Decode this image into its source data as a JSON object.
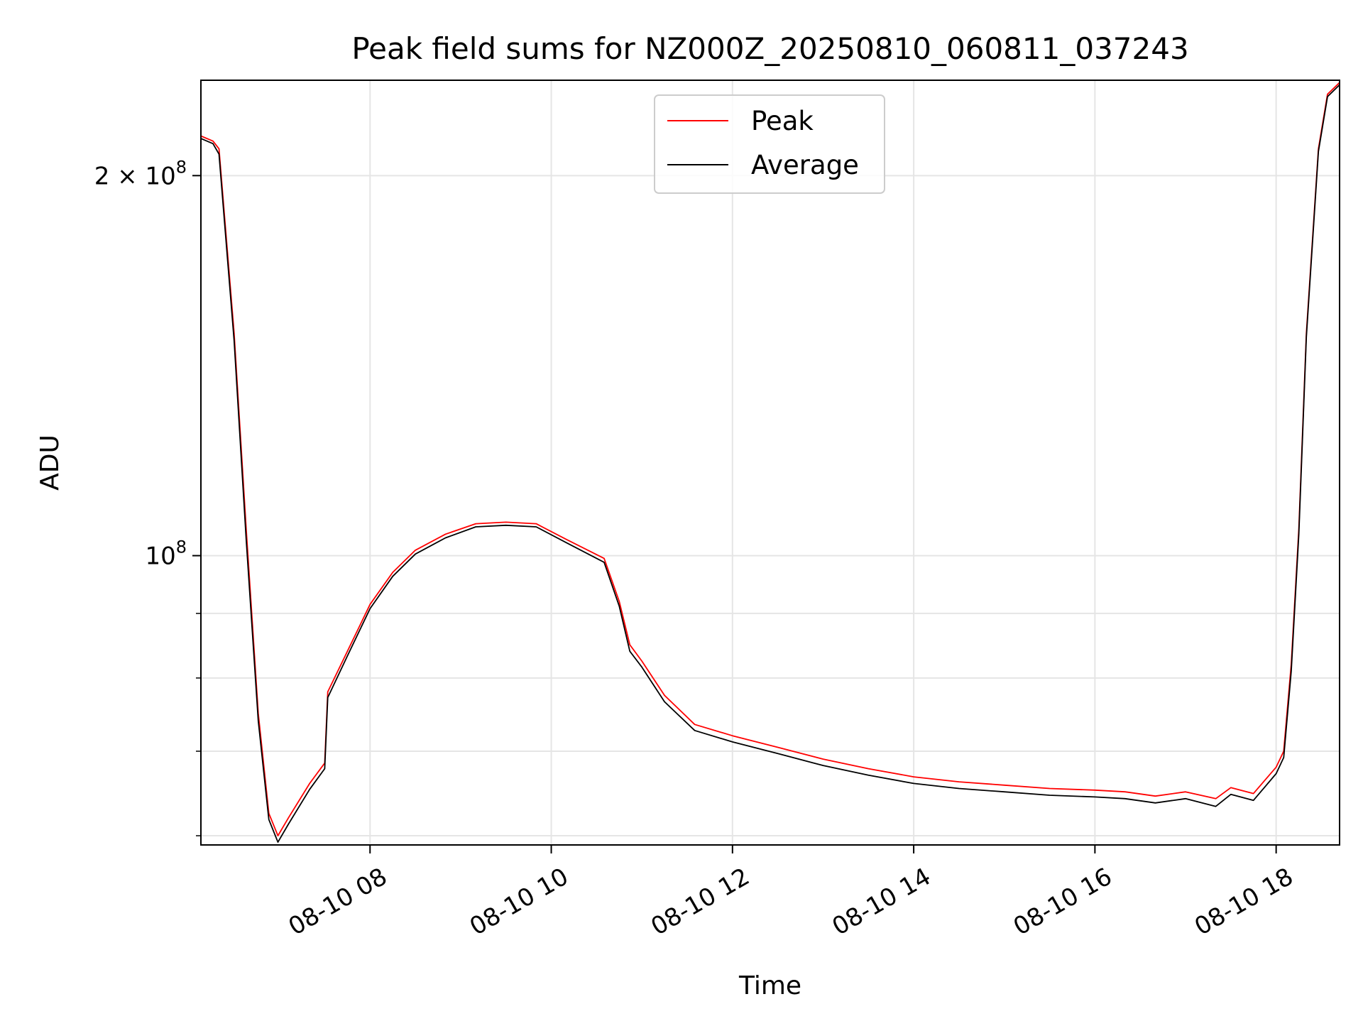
{
  "chart_data": {
    "type": "line",
    "title": "Peak field sums for NZ000Z_20250810_060811_037243",
    "xlabel": "Time",
    "ylabel": "ADU",
    "x_axis": {
      "kind": "datetime",
      "range": [
        "2025-08-10 06:08",
        "2025-08-10 18:42"
      ],
      "ticks": [
        {
          "value": "2025-08-10 08:00",
          "label": "08-10 08"
        },
        {
          "value": "2025-08-10 10:00",
          "label": "08-10 10"
        },
        {
          "value": "2025-08-10 12:00",
          "label": "08-10 12"
        },
        {
          "value": "2025-08-10 14:00",
          "label": "08-10 14"
        },
        {
          "value": "2025-08-10 16:00",
          "label": "08-10 16"
        },
        {
          "value": "2025-08-10 18:00",
          "label": "08-10 18"
        }
      ]
    },
    "y_axis": {
      "scale": "log",
      "range": [
        59000000,
        238000000
      ],
      "major_ticks": [
        {
          "value": 100000000,
          "label_base": "10",
          "label_exp": "8",
          "label_coef": ""
        },
        {
          "value": 200000000,
          "label_base": "10",
          "label_exp": "8",
          "label_coef": "2 × "
        }
      ],
      "minor_ticks": [
        60000000,
        70000000,
        80000000,
        90000000
      ]
    },
    "grid": true,
    "legend": {
      "position": "upper center",
      "entries": [
        {
          "name": "Peak",
          "color": "#ff0000"
        },
        {
          "name": "Average",
          "color": "#000000"
        }
      ]
    },
    "series": [
      {
        "name": "Peak",
        "color": "#ff0000",
        "points": [
          [
            "2025-08-10 06:08",
            215000000
          ],
          [
            "2025-08-10 06:16",
            213000000
          ],
          [
            "2025-08-10 06:20",
            210000000
          ],
          [
            "2025-08-10 06:30",
            150000000
          ],
          [
            "2025-08-10 06:38",
            105000000
          ],
          [
            "2025-08-10 06:46",
            75000000
          ],
          [
            "2025-08-10 06:53",
            62500000
          ],
          [
            "2025-08-10 06:59",
            60000000
          ],
          [
            "2025-08-10 07:06",
            62000000
          ],
          [
            "2025-08-10 07:20",
            66000000
          ],
          [
            "2025-08-10 07:30",
            68500000
          ],
          [
            "2025-08-10 07:32",
            78000000
          ],
          [
            "2025-08-10 07:45",
            84000000
          ],
          [
            "2025-08-10 08:00",
            91500000
          ],
          [
            "2025-08-10 08:15",
            97000000
          ],
          [
            "2025-08-10 08:30",
            101000000
          ],
          [
            "2025-08-10 08:50",
            104000000
          ],
          [
            "2025-08-10 09:10",
            106000000
          ],
          [
            "2025-08-10 09:30",
            106300000
          ],
          [
            "2025-08-10 09:50",
            106000000
          ],
          [
            "2025-08-10 10:10",
            103000000
          ],
          [
            "2025-08-10 10:35",
            99500000
          ],
          [
            "2025-08-10 10:45",
            92000000
          ],
          [
            "2025-08-10 10:52",
            85000000
          ],
          [
            "2025-08-10 11:00",
            82500000
          ],
          [
            "2025-08-10 11:15",
            77500000
          ],
          [
            "2025-08-10 11:35",
            73500000
          ],
          [
            "2025-08-10 12:00",
            72000000
          ],
          [
            "2025-08-10 12:30",
            70500000
          ],
          [
            "2025-08-10 13:00",
            69000000
          ],
          [
            "2025-08-10 13:30",
            67800000
          ],
          [
            "2025-08-10 14:00",
            66800000
          ],
          [
            "2025-08-10 14:30",
            66200000
          ],
          [
            "2025-08-10 15:00",
            65800000
          ],
          [
            "2025-08-10 15:30",
            65400000
          ],
          [
            "2025-08-10 16:00",
            65200000
          ],
          [
            "2025-08-10 16:20",
            65000000
          ],
          [
            "2025-08-10 16:40",
            64500000
          ],
          [
            "2025-08-10 17:00",
            65000000
          ],
          [
            "2025-08-10 17:20",
            64200000
          ],
          [
            "2025-08-10 17:30",
            65500000
          ],
          [
            "2025-08-10 17:45",
            64800000
          ],
          [
            "2025-08-10 18:00",
            68000000
          ],
          [
            "2025-08-10 18:05",
            70000000
          ],
          [
            "2025-08-10 18:10",
            82000000
          ],
          [
            "2025-08-10 18:15",
            105000000
          ],
          [
            "2025-08-10 18:20",
            150000000
          ],
          [
            "2025-08-10 18:28",
            210000000
          ],
          [
            "2025-08-10 18:34",
            232000000
          ],
          [
            "2025-08-10 18:42",
            237000000
          ]
        ]
      },
      {
        "name": "Average",
        "color": "#000000",
        "points": [
          [
            "2025-08-10 06:08",
            214000000
          ],
          [
            "2025-08-10 06:16",
            212000000
          ],
          [
            "2025-08-10 06:20",
            208000000
          ],
          [
            "2025-08-10 06:30",
            148000000
          ],
          [
            "2025-08-10 06:38",
            103000000
          ],
          [
            "2025-08-10 06:46",
            74000000
          ],
          [
            "2025-08-10 06:53",
            61800000
          ],
          [
            "2025-08-10 06:59",
            59300000
          ],
          [
            "2025-08-10 07:06",
            61300000
          ],
          [
            "2025-08-10 07:20",
            65300000
          ],
          [
            "2025-08-10 07:30",
            67800000
          ],
          [
            "2025-08-10 07:32",
            77200000
          ],
          [
            "2025-08-10 07:45",
            83300000
          ],
          [
            "2025-08-10 08:00",
            90800000
          ],
          [
            "2025-08-10 08:15",
            96300000
          ],
          [
            "2025-08-10 08:30",
            100300000
          ],
          [
            "2025-08-10 08:50",
            103300000
          ],
          [
            "2025-08-10 09:10",
            105400000
          ],
          [
            "2025-08-10 09:30",
            105700000
          ],
          [
            "2025-08-10 09:50",
            105400000
          ],
          [
            "2025-08-10 10:10",
            102400000
          ],
          [
            "2025-08-10 10:35",
            98800000
          ],
          [
            "2025-08-10 10:45",
            91200000
          ],
          [
            "2025-08-10 10:52",
            84000000
          ],
          [
            "2025-08-10 11:00",
            81600000
          ],
          [
            "2025-08-10 11:15",
            76600000
          ],
          [
            "2025-08-10 11:35",
            72700000
          ],
          [
            "2025-08-10 12:00",
            71200000
          ],
          [
            "2025-08-10 12:30",
            69700000
          ],
          [
            "2025-08-10 13:00",
            68200000
          ],
          [
            "2025-08-10 13:30",
            67000000
          ],
          [
            "2025-08-10 14:00",
            66000000
          ],
          [
            "2025-08-10 14:30",
            65400000
          ],
          [
            "2025-08-10 15:00",
            65000000
          ],
          [
            "2025-08-10 15:30",
            64600000
          ],
          [
            "2025-08-10 16:00",
            64400000
          ],
          [
            "2025-08-10 16:20",
            64200000
          ],
          [
            "2025-08-10 16:40",
            63700000
          ],
          [
            "2025-08-10 17:00",
            64200000
          ],
          [
            "2025-08-10 17:20",
            63300000
          ],
          [
            "2025-08-10 17:30",
            64700000
          ],
          [
            "2025-08-10 17:45",
            64000000
          ],
          [
            "2025-08-10 18:00",
            67200000
          ],
          [
            "2025-08-10 18:05",
            69200000
          ],
          [
            "2025-08-10 18:10",
            81000000
          ],
          [
            "2025-08-10 18:15",
            104000000
          ],
          [
            "2025-08-10 18:20",
            149000000
          ],
          [
            "2025-08-10 18:28",
            209000000
          ],
          [
            "2025-08-10 18:34",
            231000000
          ],
          [
            "2025-08-10 18:42",
            236000000
          ]
        ]
      }
    ]
  }
}
